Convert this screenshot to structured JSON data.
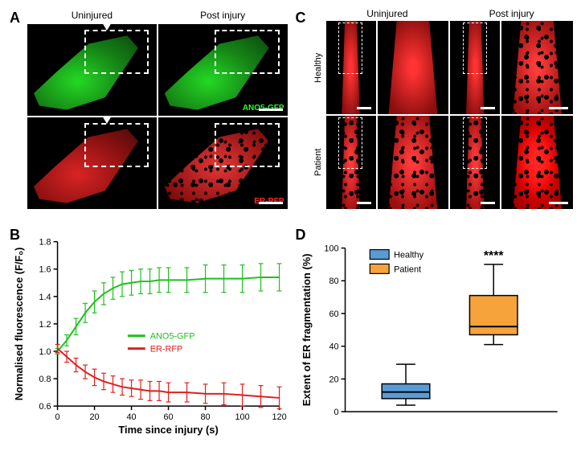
{
  "panels": {
    "A": {
      "label": "A",
      "columns": [
        "Uninjured",
        "Post injury"
      ],
      "rows": [
        {
          "probe": "ANO5-GFP",
          "color": "#2aff2a",
          "label_color": "#2aff2a"
        },
        {
          "probe": "ER-RFP",
          "color": "#ff2a2a",
          "label_color": "#ff2a2a"
        }
      ]
    },
    "B": {
      "label": "B",
      "type": "line",
      "xlabel": "Time since injury (s)",
      "ylabel": "Normalised fluorescence (F/F₀)",
      "xlim": [
        0,
        120
      ],
      "xtick_step": 20,
      "ylim": [
        0.6,
        1.8
      ],
      "ytick_step": 0.2,
      "label_fontsize": 13,
      "tick_fontsize": 11,
      "background_color": "#ffffff",
      "series": [
        {
          "name": "ANO5-GFP",
          "color": "#1fbf1f",
          "x": [
            0,
            5,
            10,
            15,
            20,
            25,
            30,
            35,
            40,
            45,
            50,
            55,
            60,
            70,
            80,
            90,
            100,
            110,
            120
          ],
          "y": [
            1.0,
            1.08,
            1.18,
            1.28,
            1.36,
            1.42,
            1.46,
            1.49,
            1.5,
            1.51,
            1.51,
            1.52,
            1.52,
            1.52,
            1.53,
            1.53,
            1.53,
            1.54,
            1.54
          ],
          "err": [
            0.02,
            0.04,
            0.06,
            0.07,
            0.08,
            0.08,
            0.08,
            0.09,
            0.09,
            0.09,
            0.09,
            0.09,
            0.09,
            0.09,
            0.1,
            0.1,
            0.1,
            0.1,
            0.1
          ]
        },
        {
          "name": "ER-RFP",
          "color": "#e01f1f",
          "x": [
            0,
            5,
            10,
            15,
            20,
            25,
            30,
            35,
            40,
            45,
            50,
            55,
            60,
            70,
            80,
            90,
            100,
            110,
            120
          ],
          "y": [
            1.02,
            0.96,
            0.9,
            0.85,
            0.81,
            0.78,
            0.76,
            0.74,
            0.73,
            0.72,
            0.71,
            0.71,
            0.7,
            0.7,
            0.69,
            0.69,
            0.68,
            0.67,
            0.66
          ],
          "err": [
            0.03,
            0.04,
            0.05,
            0.05,
            0.06,
            0.06,
            0.06,
            0.06,
            0.06,
            0.07,
            0.07,
            0.07,
            0.07,
            0.07,
            0.07,
            0.08,
            0.08,
            0.08,
            0.08
          ]
        }
      ],
      "legend_pos": "inside-middle-right"
    },
    "C": {
      "label": "C",
      "columns": [
        "Uninjured",
        "Post injury"
      ],
      "rows": [
        "Healthy",
        "Patient"
      ]
    },
    "D": {
      "label": "D",
      "type": "boxplot",
      "ylabel": "Extent of ER fragmentation (%)",
      "ylim": [
        0,
        100
      ],
      "ytick_step": 20,
      "label_fontsize": 13,
      "tick_fontsize": 11,
      "groups": [
        {
          "name": "Healthy",
          "color": "#5a9bd5",
          "min": 4,
          "q1": 8,
          "median": 12,
          "q3": 17,
          "max": 29
        },
        {
          "name": "Patient",
          "color": "#f5a33a",
          "min": 41,
          "q1": 47,
          "median": 52,
          "q3": 71,
          "max": 90
        }
      ],
      "significance": "****",
      "legend_pos": "inside-top-left"
    }
  }
}
